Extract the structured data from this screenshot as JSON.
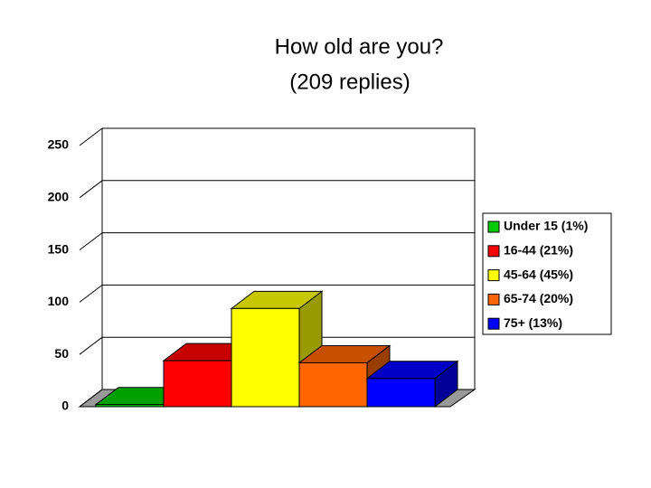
{
  "chart_data": {
    "type": "bar3d",
    "title": "How old are you?",
    "subtitle": "(209 replies)",
    "categories": [
      "Under 15 (1%)",
      "16-44 (21%)",
      "45-64 (45%)",
      "65-74 (20%)",
      "75+ (13%)"
    ],
    "values": [
      2,
      44,
      94,
      42,
      27
    ],
    "colors": [
      "#00cc00",
      "#ff0000",
      "#ffff00",
      "#ff6600",
      "#0000ff"
    ],
    "ylim": [
      0,
      250
    ],
    "yticks": [
      0,
      50,
      100,
      150,
      200,
      250
    ],
    "grid": true,
    "legend": "right"
  }
}
